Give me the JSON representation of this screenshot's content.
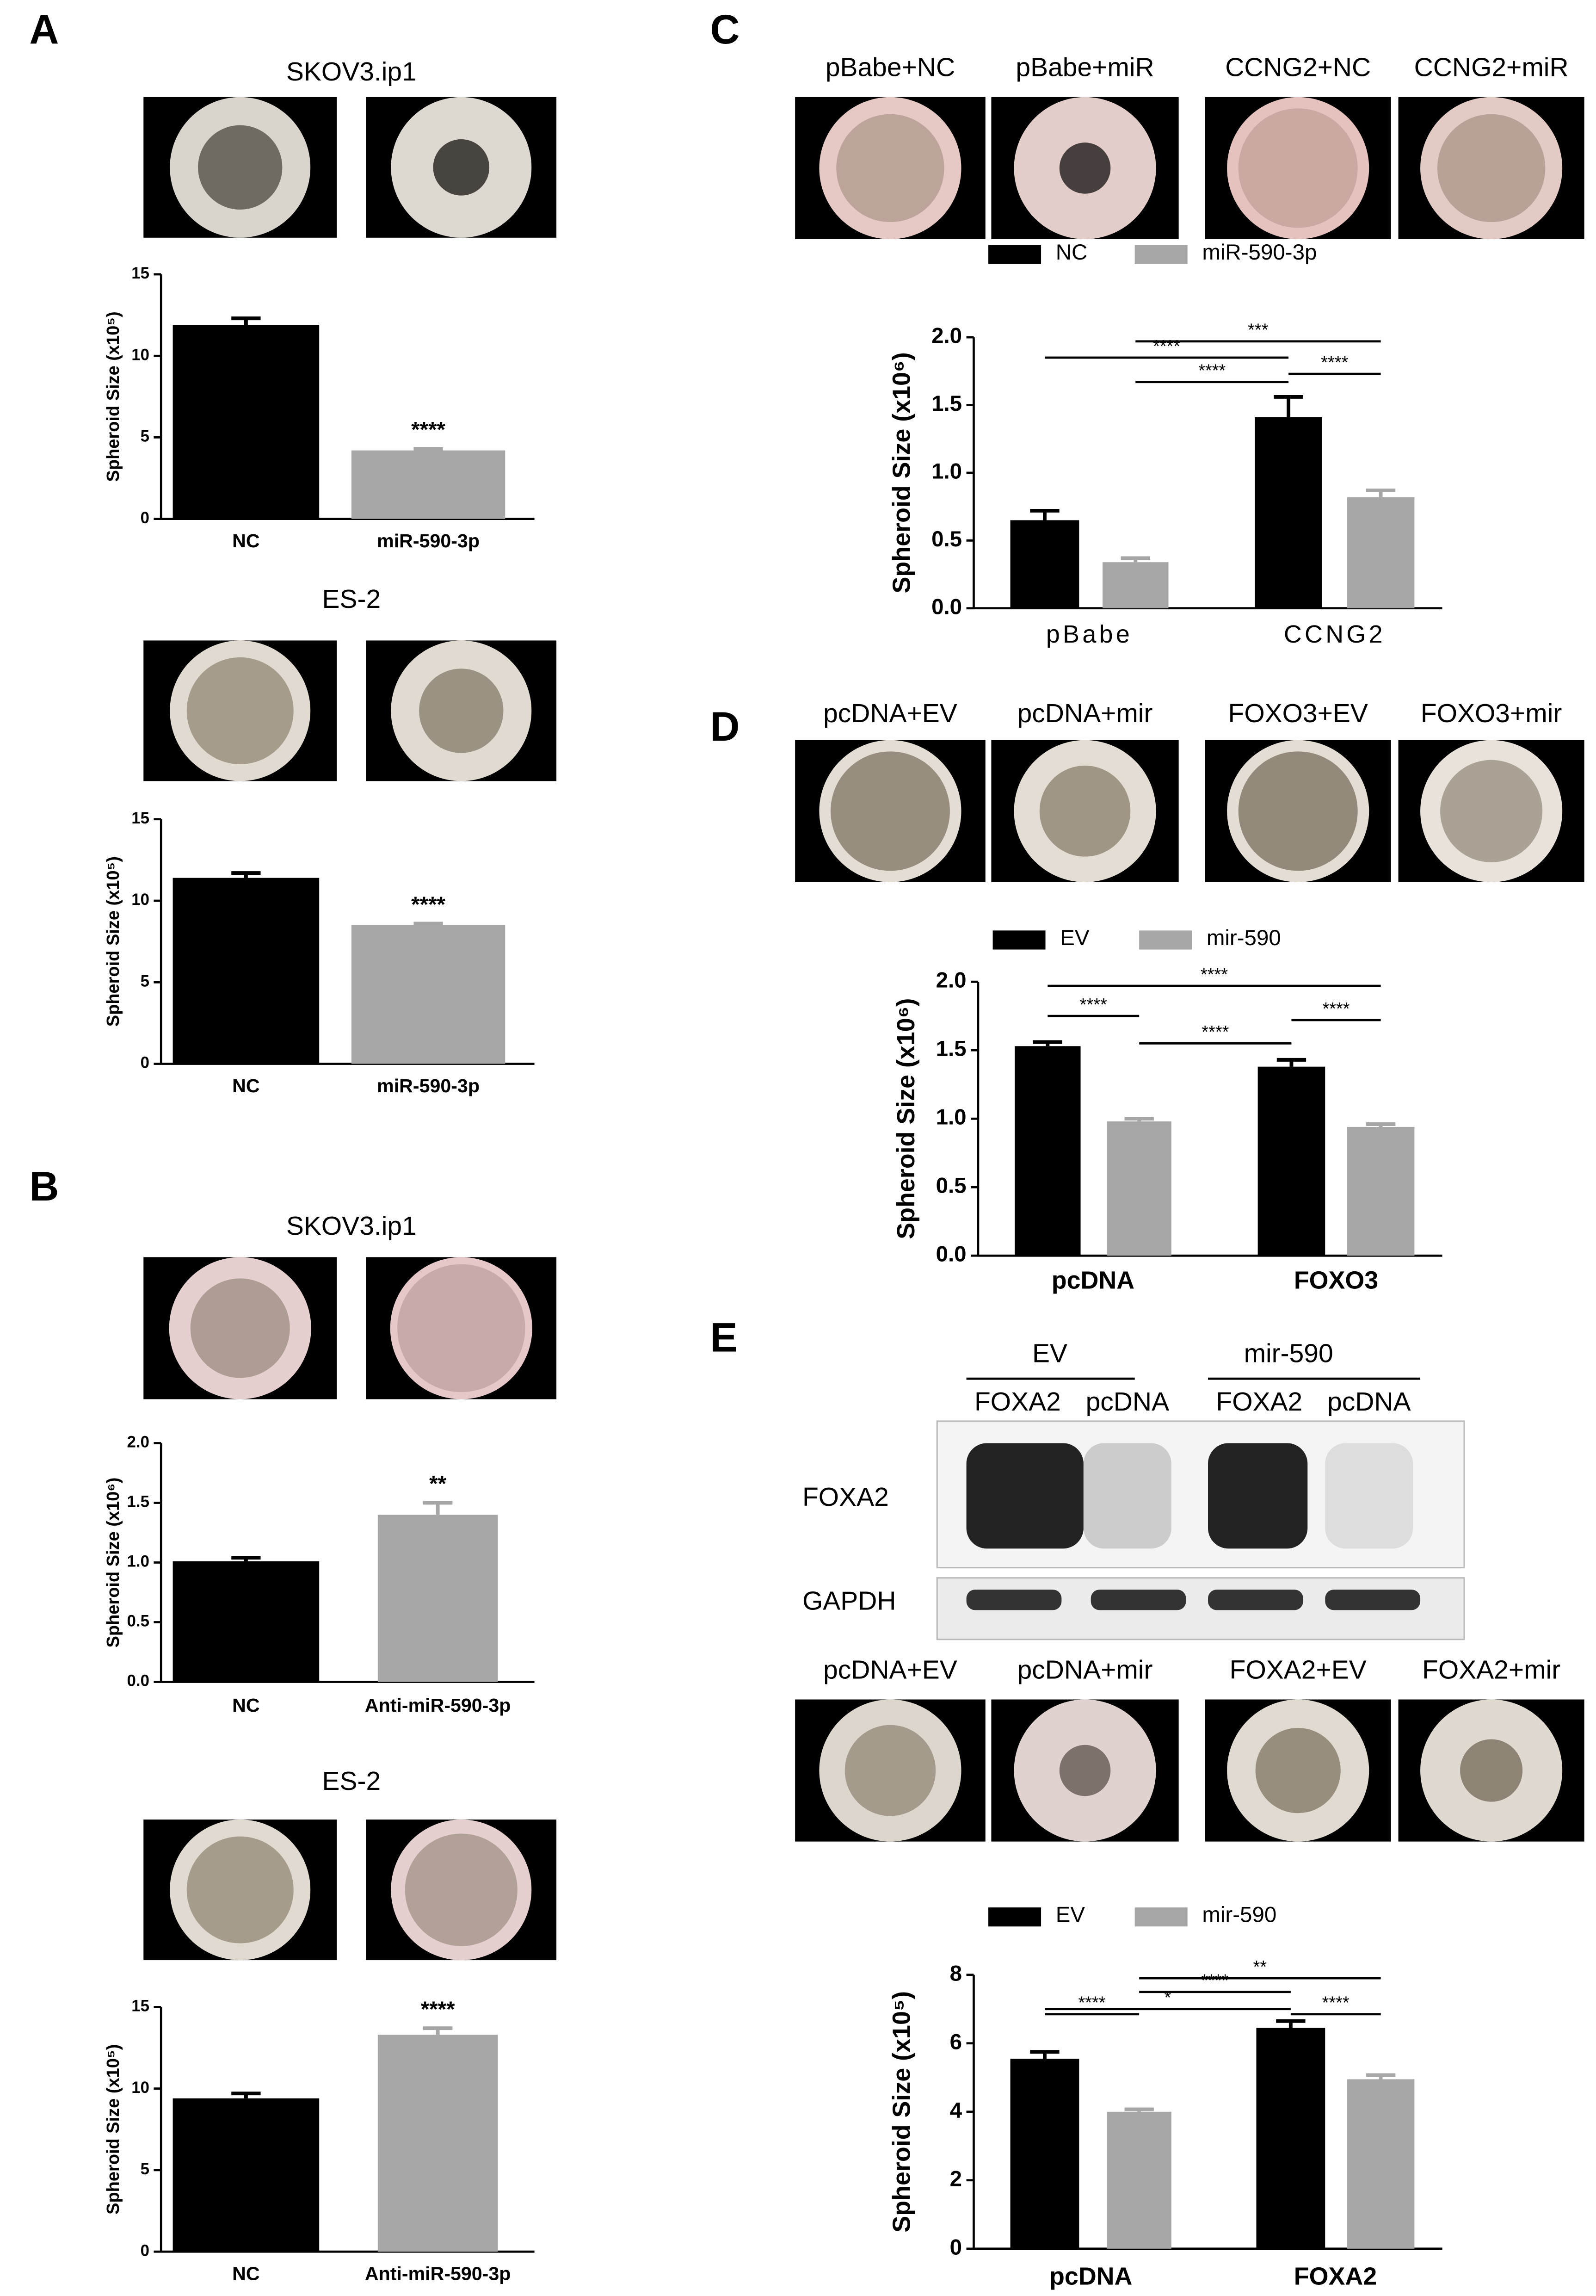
{
  "panel_labels": [
    "A",
    "B",
    "C",
    "D",
    "E"
  ],
  "image_captions": {
    "C": [
      "pBabe+NC",
      "pBabe+miR",
      "CCNG2+NC",
      "CCNG2+miR"
    ],
    "D": [
      "pcDNA+EV",
      "pcDNA+mir",
      "FOXO3+EV",
      "FOXO3+mir"
    ],
    "E": [
      "pcDNA+EV",
      "pcDNA+mir",
      "FOXA2+EV",
      "FOXA2+mir"
    ]
  },
  "blot": {
    "groups": [
      "EV",
      "mir-590"
    ],
    "lanes": [
      "FOXA2",
      "pcDNA",
      "FOXA2",
      "pcDNA"
    ],
    "rows": [
      "FOXA2",
      "GAPDH"
    ]
  },
  "chart_data": [
    {
      "type": "bar",
      "title": "SKOV3.ip1",
      "ylabel": "Spheroid Size (x10⁵)",
      "categories": [
        "NC",
        "miR-590-3p"
      ],
      "values": [
        11.9,
        4.2
      ],
      "errors": [
        0.4,
        0.1
      ],
      "colors": [
        "#000000",
        "#a6a6a6"
      ],
      "ylim": [
        0,
        15
      ],
      "yticks": [
        0,
        5,
        10,
        15
      ],
      "annotations": [
        "****"
      ]
    },
    {
      "type": "bar",
      "title": "ES-2",
      "ylabel": "Spheroid Size (x10⁵)",
      "categories": [
        "NC",
        "miR-590-3p"
      ],
      "values": [
        11.4,
        8.5
      ],
      "errors": [
        0.3,
        0.1
      ],
      "colors": [
        "#000000",
        "#a6a6a6"
      ],
      "ylim": [
        0,
        15
      ],
      "yticks": [
        0,
        5,
        10,
        15
      ],
      "annotations": [
        "****"
      ]
    },
    {
      "type": "bar",
      "title": "SKOV3.ip1",
      "ylabel": "Spheroid Size (x10⁶)",
      "categories": [
        "NC",
        "Anti-miR-590-3p"
      ],
      "values": [
        1.01,
        1.4
      ],
      "errors": [
        0.03,
        0.1
      ],
      "colors": [
        "#000000",
        "#a6a6a6"
      ],
      "ylim": [
        0,
        2
      ],
      "yticks": [
        {
          "value": 0,
          "label": "0.0"
        },
        0.5,
        {
          "value": 1,
          "label": "1.0"
        },
        1.5,
        {
          "value": 2,
          "label": "2.0"
        }
      ],
      "annotations": [
        "**"
      ]
    },
    {
      "type": "bar",
      "title": "ES-2",
      "ylabel": "Spheroid Size (x10⁵)",
      "categories": [
        "NC",
        "Anti-miR-590-3p"
      ],
      "values": [
        9.4,
        13.3
      ],
      "errors": [
        0.3,
        0.4
      ],
      "colors": [
        "#000000",
        "#a6a6a6"
      ],
      "ylim": [
        0,
        15
      ],
      "yticks": [
        0,
        5,
        10,
        15
      ],
      "annotations": [
        "****"
      ]
    },
    {
      "type": "grouped_bar",
      "ylabel": "Spheroid Size (x10⁶)",
      "categories": [
        "pBabe",
        "CCNG2"
      ],
      "series": [
        {
          "name": "NC",
          "color": "#000000",
          "values": [
            0.65,
            1.41
          ],
          "errors": [
            0.07,
            0.15
          ]
        },
        {
          "name": "miR-590-3p",
          "color": "#a6a6a6",
          "values": [
            0.34,
            0.82
          ],
          "errors": [
            0.03,
            0.05
          ]
        }
      ],
      "ylim": [
        0,
        2
      ],
      "yticks": [
        {
          "value": 0,
          "label": "0.0"
        },
        0.5,
        {
          "value": 1,
          "label": "1.0"
        },
        1.5,
        {
          "value": 2,
          "label": "2.0"
        }
      ],
      "annotations": [
        "***",
        "****",
        "****",
        "****"
      ]
    },
    {
      "type": "grouped_bar",
      "ylabel": "Spheroid Size (x10⁶)",
      "categories": [
        "pcDNA",
        "FOXO3"
      ],
      "series": [
        {
          "name": "EV",
          "color": "#000000",
          "values": [
            1.53,
            1.38
          ],
          "errors": [
            0.03,
            0.05
          ]
        },
        {
          "name": "mir-590",
          "color": "#a6a6a6",
          "values": [
            0.98,
            0.94
          ],
          "errors": [
            0.02,
            0.02
          ]
        }
      ],
      "ylim": [
        0,
        2
      ],
      "yticks": [
        {
          "value": 0,
          "label": "0.0"
        },
        0.5,
        {
          "value": 1,
          "label": "1.0"
        },
        1.5,
        {
          "value": 2,
          "label": "2.0"
        }
      ],
      "annotations": [
        "****",
        "****",
        "****",
        "****"
      ]
    },
    {
      "type": "grouped_bar",
      "ylabel": "Spheroid Size (x10⁵)",
      "categories": [
        "pcDNA",
        "FOXA2"
      ],
      "series": [
        {
          "name": "EV",
          "color": "#000000",
          "values": [
            5.55,
            6.45
          ],
          "errors": [
            0.2,
            0.2
          ]
        },
        {
          "name": "mir-590",
          "color": "#a6a6a6",
          "values": [
            4.0,
            4.95
          ],
          "errors": [
            0.07,
            0.12
          ]
        }
      ],
      "ylim": [
        0,
        8
      ],
      "yticks": [
        0,
        2,
        4,
        6,
        8
      ],
      "annotations": [
        "**",
        "****",
        "*",
        "****",
        "****"
      ]
    }
  ]
}
